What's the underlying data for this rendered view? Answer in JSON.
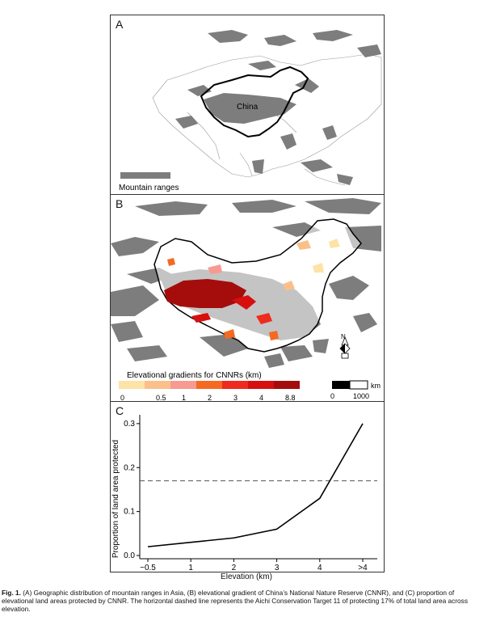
{
  "panel_a": {
    "letter": "A",
    "country_label": "China",
    "legend_label": "Mountain ranges"
  },
  "panel_b": {
    "letter": "B",
    "legend_title": "Elevational gradients for CNNRs (km)",
    "legend_ticks": [
      "0",
      "0.5",
      "1",
      "2",
      "3",
      "4",
      "8.8"
    ],
    "legend_colors": [
      "#fde3a7",
      "#fbc08a",
      "#f79a92",
      "#f46a22",
      "#ef2a1e",
      "#d80f0f",
      "#a50d0d"
    ],
    "scalebar_unit": "km",
    "scalebar_ticks": [
      "0",
      "1000"
    ],
    "north_label": "N"
  },
  "panel_c": {
    "letter": "C"
  },
  "chart_data": {
    "type": "line",
    "xlabel": "Elevation (km)",
    "ylabel": "Proportion of land area protected",
    "categories": [
      "~0.5",
      "1",
      "2",
      "3",
      "4",
      ">4"
    ],
    "values": [
      0.02,
      0.03,
      0.04,
      0.06,
      0.13,
      0.3
    ],
    "ylim": [
      0.0,
      0.32
    ],
    "yticks": [
      "0.0",
      "0.1",
      "0.2",
      "0.3"
    ],
    "ytick_values": [
      0.0,
      0.1,
      0.2,
      0.3
    ],
    "reference_line": 0.17,
    "grid": false
  },
  "caption": {
    "lead": "Fig. 1.",
    "text": "(A) Geographic distribution of mountain ranges in Asia, (B) elevational gradient of China’s National Nature Reserve (CNNR), and (C) proportion of elevational land areas protected by CNNR. The horizontal dashed line represents the Aichi Conservation Target 11 of protecting 17% of total land area across elevation."
  },
  "colors": {
    "mountain": "#7d7d7d",
    "outline": "#000000",
    "border": "#aaaaaa"
  }
}
